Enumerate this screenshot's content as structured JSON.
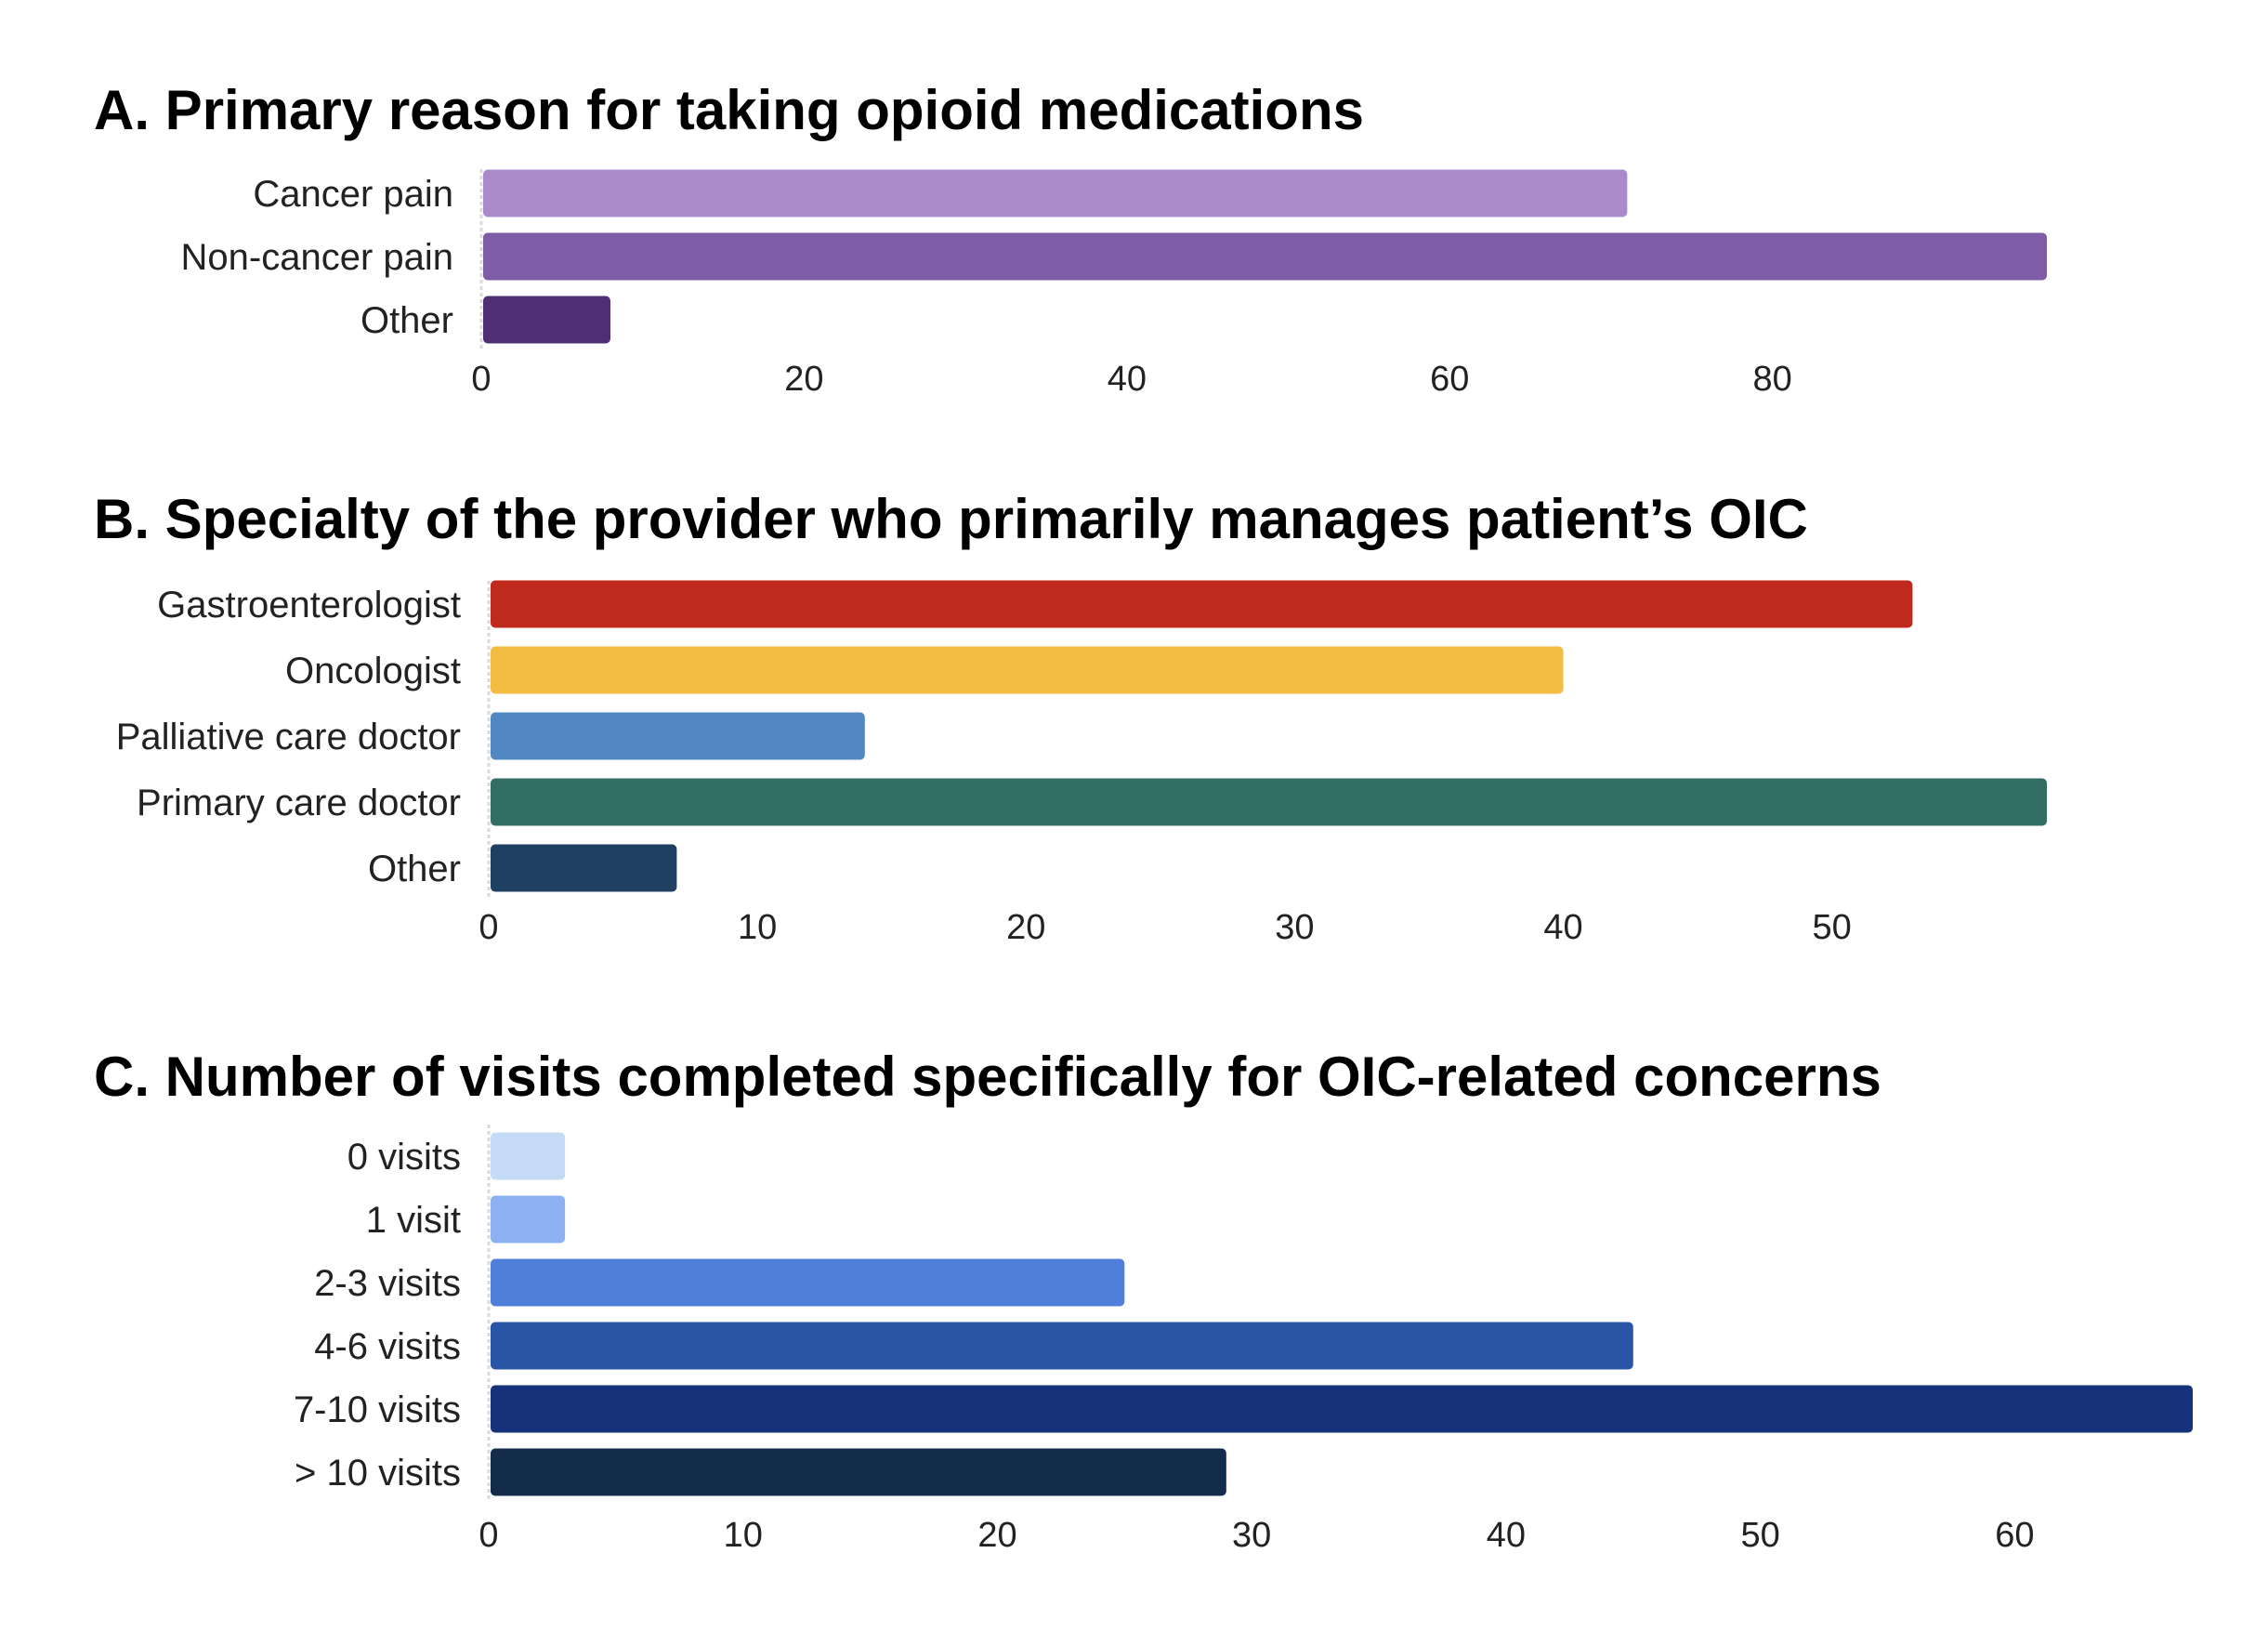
{
  "chart_data": [
    {
      "type": "bar",
      "orientation": "horizontal",
      "title": "A. Primary reason for taking opioid medications",
      "categories": [
        "Cancer pain",
        "Non-cancer pain",
        "Other"
      ],
      "values": [
        71,
        97,
        8
      ],
      "colors": [
        "#a98bcc",
        "#7e5da6",
        "#4e2f73"
      ],
      "xticks": [
        0,
        20,
        40,
        60,
        80
      ],
      "xlim": [
        0,
        97
      ],
      "grid": false
    },
    {
      "type": "bar",
      "orientation": "horizontal",
      "title": "B. Specialty of the provider who primarily manages patient’s OIC",
      "categories": [
        "Gastroenterologist",
        "Oncologist",
        "Palliative care doctor",
        "Primary care doctor",
        "Other"
      ],
      "values": [
        53,
        40,
        14,
        58,
        7
      ],
      "colors": [
        "#c0291e",
        "#f3bc43",
        "#5288c2",
        "#336e64",
        "#1f4060"
      ],
      "xticks": [
        0,
        10,
        20,
        30,
        40,
        50
      ],
      "xlim": [
        0,
        58
      ],
      "grid": false
    },
    {
      "type": "bar",
      "orientation": "horizontal",
      "title": "C. Number of visits completed specifically for OIC-related concerns",
      "categories": [
        "0 visits",
        "1 visit",
        "2-3 visits",
        "4-6 visits",
        "7-10 visits",
        "> 10 visits"
      ],
      "values": [
        3,
        3,
        25,
        45,
        67,
        29
      ],
      "colors": [
        "#c5dbf5",
        "#8db0f0",
        "#4f7fd8",
        "#2a55a6",
        "#16327a",
        "#132c4b"
      ],
      "xticks": [
        0,
        10,
        20,
        30,
        40,
        50,
        60
      ],
      "xlim": [
        0,
        67
      ],
      "grid": false
    }
  ]
}
